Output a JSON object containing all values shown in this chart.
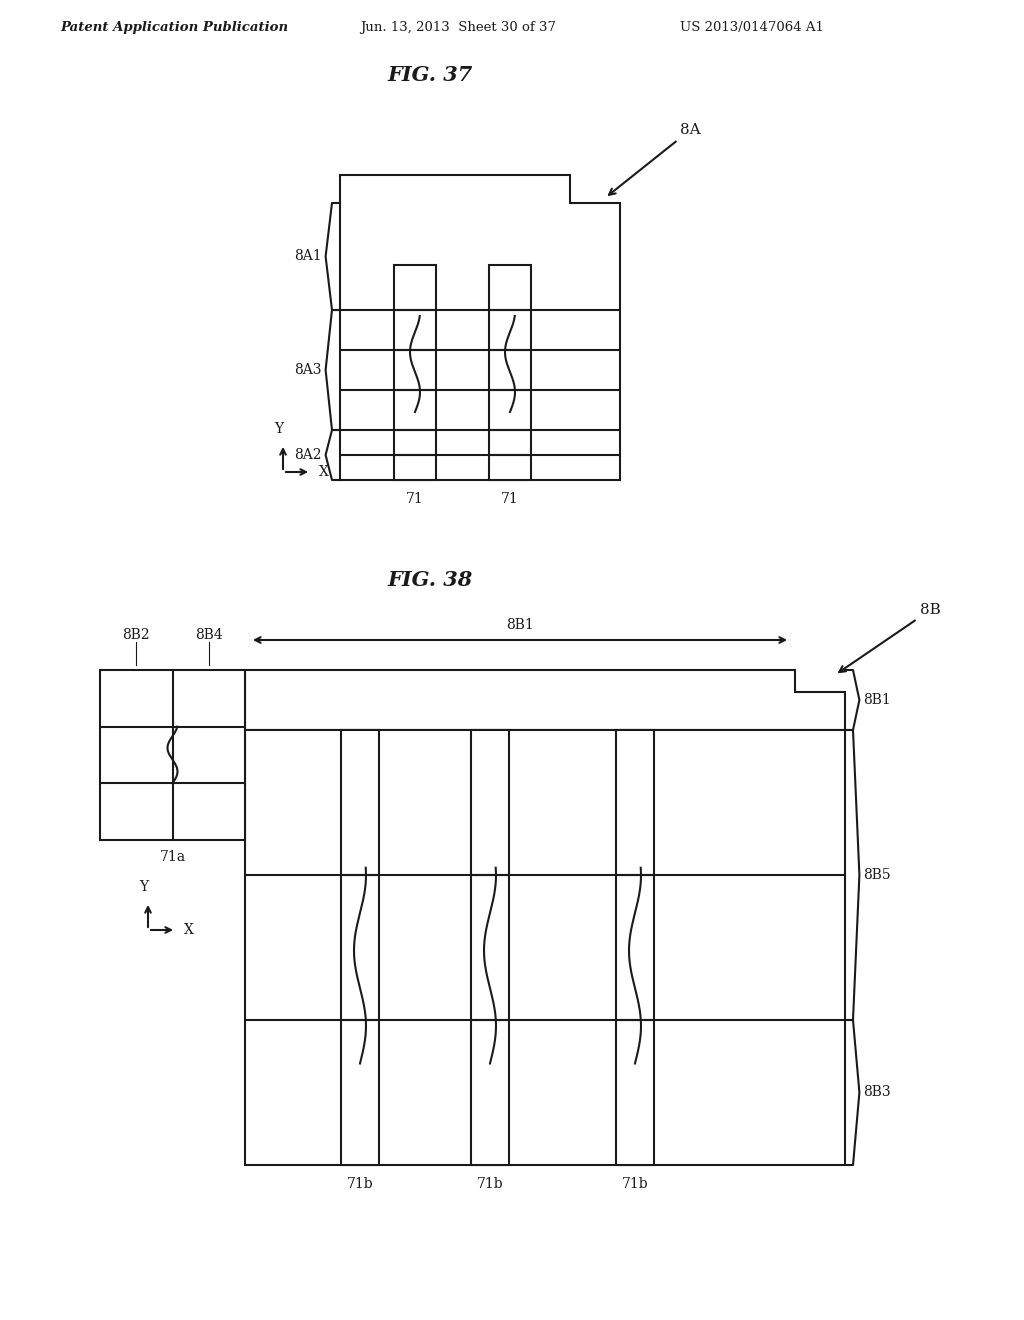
{
  "bg_color": "#ffffff",
  "header_left": "Patent Application Publication",
  "header_mid": "Jun. 13, 2013  Sheet 30 of 37",
  "header_right": "US 2013/0147064 A1",
  "fig37_title": "FIG. 37",
  "fig38_title": "FIG. 38",
  "lc": "#1a1a1a",
  "lw": 1.5
}
